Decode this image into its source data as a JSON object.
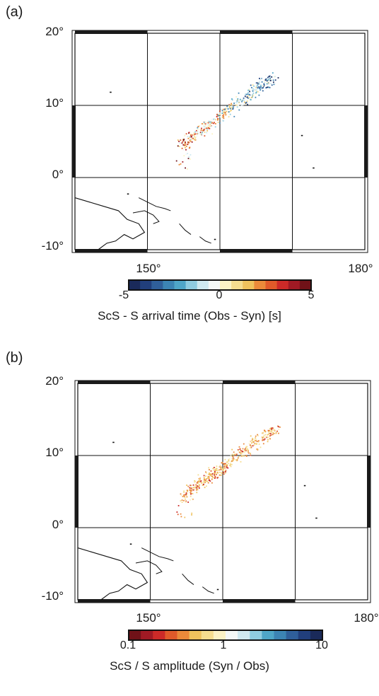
{
  "panels": [
    {
      "label": "(a)",
      "y_ticks": [
        "20°",
        "10°",
        "0°",
        "-10°"
      ],
      "x_ticks": [
        "150°",
        "180°"
      ],
      "colorbar": {
        "tick_labels": [
          "-5",
          "0",
          "5"
        ],
        "title": "ScS - S arrival time (Obs - Syn) [s]",
        "colors": [
          "#1a2a5a",
          "#213f7c",
          "#2f5f9a",
          "#3c84b4",
          "#4fa6c8",
          "#8fcce0",
          "#cfe9f0",
          "#f4f8f6",
          "#fbf2c4",
          "#f5dd8f",
          "#efc25d",
          "#eb8a3a",
          "#e05a2a",
          "#cc2a28",
          "#a01a24",
          "#701218"
        ]
      }
    },
    {
      "label": "(b)",
      "y_ticks": [
        "20°",
        "10°",
        "0°",
        "-10°"
      ],
      "x_ticks": [
        "150°",
        "180°"
      ],
      "colorbar": {
        "tick_labels": [
          "0.1",
          "1",
          "10"
        ],
        "title": "ScS / S amplitude (Syn / Obs)",
        "colors": [
          "#701218",
          "#a01a24",
          "#cc2a28",
          "#e05a2a",
          "#eb8a3a",
          "#efc25d",
          "#f5dd8f",
          "#fbf2c4",
          "#f4f8f6",
          "#cfe9f0",
          "#8fcce0",
          "#4fa6c8",
          "#3c84b4",
          "#2f5f9a",
          "#213f7c",
          "#1a2a5a"
        ]
      }
    }
  ]
}
